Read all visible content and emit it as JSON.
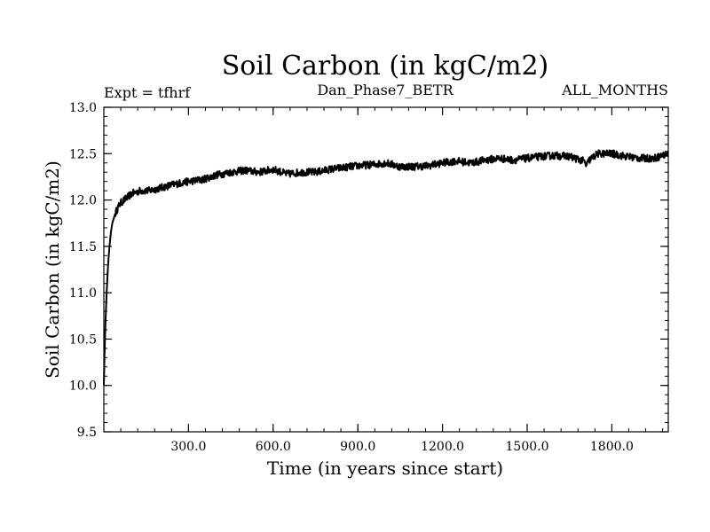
{
  "chart_data": {
    "type": "line",
    "title": "Soil Carbon (in kgC/m2)",
    "subtitle_left": "Expt = tfhrf",
    "subtitle_center": "Dan_Phase7_BETR",
    "subtitle_right": "ALL_MONTHS",
    "xlabel": "Time (in years since start)",
    "ylabel": "Soil Carbon (in kgC/m2)",
    "xlim": [
      0,
      2000
    ],
    "ylim": [
      9.5,
      13.0
    ],
    "x_ticks": [
      {
        "value": 300,
        "label": "300.0"
      },
      {
        "value": 600,
        "label": "600.0"
      },
      {
        "value": 900,
        "label": "900.0"
      },
      {
        "value": 1200,
        "label": "1200.0"
      },
      {
        "value": 1500,
        "label": "1500.0"
      },
      {
        "value": 1800,
        "label": "1800.0"
      }
    ],
    "y_ticks": [
      {
        "value": 9.5,
        "label": "9.5"
      },
      {
        "value": 10.0,
        "label": "10.0"
      },
      {
        "value": 10.5,
        "label": "10.5"
      },
      {
        "value": 11.0,
        "label": "11.0"
      },
      {
        "value": 11.5,
        "label": "11.5"
      },
      {
        "value": 12.0,
        "label": "12.0"
      },
      {
        "value": 12.5,
        "label": "12.5"
      },
      {
        "value": 13.0,
        "label": "13.0"
      }
    ],
    "x_minor_step": 60,
    "y_minor_step": 0.1,
    "series": [
      {
        "name": "Soil Carbon",
        "color": "#000000",
        "x": [
          0,
          3,
          6,
          10,
          15,
          20,
          25,
          30,
          40,
          50,
          60,
          80,
          100,
          130,
          160,
          200,
          250,
          300,
          350,
          400,
          450,
          500,
          550,
          600,
          650,
          700,
          750,
          800,
          850,
          900,
          950,
          1000,
          1050,
          1100,
          1150,
          1200,
          1250,
          1300,
          1350,
          1400,
          1450,
          1500,
          1550,
          1600,
          1650,
          1700,
          1710,
          1720,
          1750,
          1800,
          1850,
          1900,
          1950,
          2000
        ],
        "values": [
          10.0,
          10.4,
          10.7,
          11.0,
          11.3,
          11.5,
          11.65,
          11.75,
          11.85,
          11.92,
          11.97,
          12.02,
          12.07,
          12.1,
          12.1,
          12.13,
          12.17,
          12.2,
          12.22,
          12.27,
          12.3,
          12.32,
          12.3,
          12.33,
          12.28,
          12.3,
          12.3,
          12.33,
          12.35,
          12.37,
          12.38,
          12.4,
          12.36,
          12.36,
          12.37,
          12.4,
          12.42,
          12.4,
          12.43,
          12.45,
          12.43,
          12.45,
          12.47,
          12.48,
          12.47,
          12.42,
          12.37,
          12.43,
          12.5,
          12.5,
          12.47,
          12.45,
          12.45,
          12.5
        ],
        "noise_amplitude": 0.04
      }
    ]
  }
}
